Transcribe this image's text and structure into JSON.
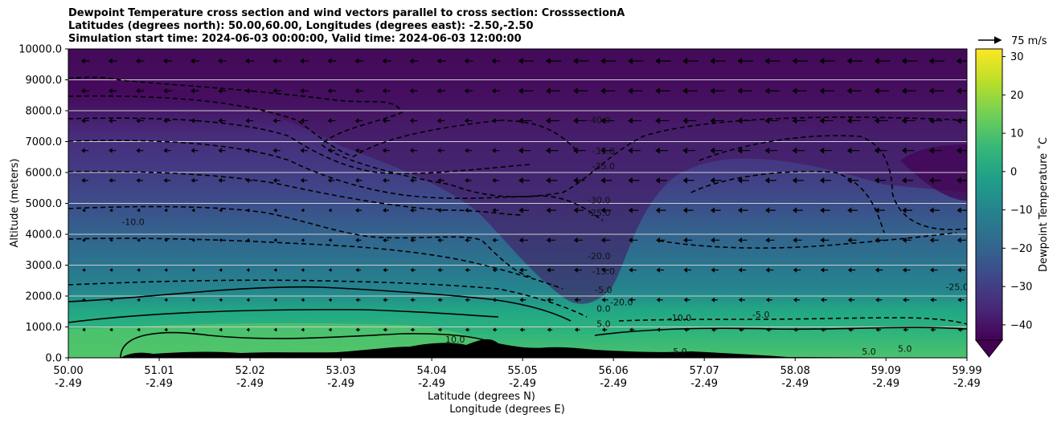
{
  "title": {
    "line1": "Dewpoint Temperature cross section and wind vectors parallel to cross section: CrosssectionA",
    "line2": "Latitudes (degrees north): 50.00,60.00, Longitudes (degrees east): -2.50,-2.50",
    "line3": "Simulation start time: 2024-06-03 00:00:00, Valid time: 2024-06-03 12:00:00"
  },
  "quiver_key_label": "75 m/s",
  "colorbar": {
    "label": "Dewpoint Temperature ˚C",
    "ticks": [
      "30",
      "20",
      "10",
      "0",
      "−10",
      "−20",
      "−30",
      "−40"
    ],
    "tick_values": [
      30,
      20,
      10,
      0,
      -10,
      -20,
      -30,
      -40
    ],
    "range": [
      -44,
      32
    ],
    "colors": [
      "#440154",
      "#482878",
      "#3e4989",
      "#31688e",
      "#26828e",
      "#1f9e89",
      "#35b779",
      "#6ece58",
      "#b5de2b",
      "#fde725"
    ]
  },
  "chart_data": {
    "type": "contour",
    "xlabel": "Latitude (degrees N)",
    "xlabel2": "Longitude (degrees E)",
    "ylabel": "Altitude (meters)",
    "xlim": [
      50.0,
      59.99
    ],
    "ylim": [
      0,
      10000
    ],
    "x_ticks": [
      {
        "lat": "50.00",
        "lon": "-2.49"
      },
      {
        "lat": "51.01",
        "lon": "-2.49"
      },
      {
        "lat": "52.02",
        "lon": "-2.49"
      },
      {
        "lat": "53.03",
        "lon": "-2.49"
      },
      {
        "lat": "54.04",
        "lon": "-2.49"
      },
      {
        "lat": "55.05",
        "lon": "-2.49"
      },
      {
        "lat": "56.06",
        "lon": "-2.49"
      },
      {
        "lat": "57.07",
        "lon": "-2.49"
      },
      {
        "lat": "58.08",
        "lon": "-2.49"
      },
      {
        "lat": "59.09",
        "lon": "-2.49"
      },
      {
        "lat": "59.99",
        "lon": "-2.49"
      }
    ],
    "x_tick_values": [
      50.0,
      51.01,
      52.02,
      53.03,
      54.04,
      55.05,
      56.06,
      57.07,
      58.08,
      59.09,
      59.99
    ],
    "y_ticks": [
      "0.0",
      "1000.0",
      "2000.0",
      "3000.0",
      "4000.0",
      "5000.0",
      "6000.0",
      "7000.0",
      "8000.0",
      "9000.0",
      "10000.0"
    ],
    "y_tick_values": [
      0,
      1000,
      2000,
      3000,
      4000,
      5000,
      6000,
      7000,
      8000,
      9000,
      10000
    ],
    "grid": "horizontal",
    "contour_labels": [
      {
        "text": "-40.0",
        "lat": 55.9,
        "alt": 7600
      },
      {
        "text": "-35.0",
        "lat": 55.95,
        "alt": 6600
      },
      {
        "text": "-35.0",
        "lat": 55.95,
        "alt": 6100
      },
      {
        "text": "-30.0",
        "lat": 55.9,
        "alt": 5000
      },
      {
        "text": "-25.0",
        "lat": 55.9,
        "alt": 4600
      },
      {
        "text": "-10.0",
        "lat": 50.72,
        "alt": 4300
      },
      {
        "text": "-20.0",
        "lat": 55.9,
        "alt": 3200
      },
      {
        "text": "-15.0",
        "lat": 55.95,
        "alt": 2700
      },
      {
        "text": "-5.0",
        "lat": 55.95,
        "alt": 2100
      },
      {
        "text": "0.0",
        "lat": 55.95,
        "alt": 1500
      },
      {
        "text": "5.0",
        "lat": 55.95,
        "alt": 1000
      },
      {
        "text": "10.0",
        "lat": 54.3,
        "alt": 500
      },
      {
        "text": "-20.0",
        "lat": 56.15,
        "alt": 1700
      },
      {
        "text": "-10.0",
        "lat": 56.8,
        "alt": 1200
      },
      {
        "text": "-5.0",
        "lat": 57.7,
        "alt": 1300
      },
      {
        "text": "5.0",
        "lat": 56.8,
        "alt": 100
      },
      {
        "text": "5.0",
        "lat": 58.9,
        "alt": 100
      },
      {
        "text": "5.0",
        "lat": 59.3,
        "alt": 200
      },
      {
        "text": "-25.0",
        "lat": 59.88,
        "alt": 2200
      }
    ]
  }
}
